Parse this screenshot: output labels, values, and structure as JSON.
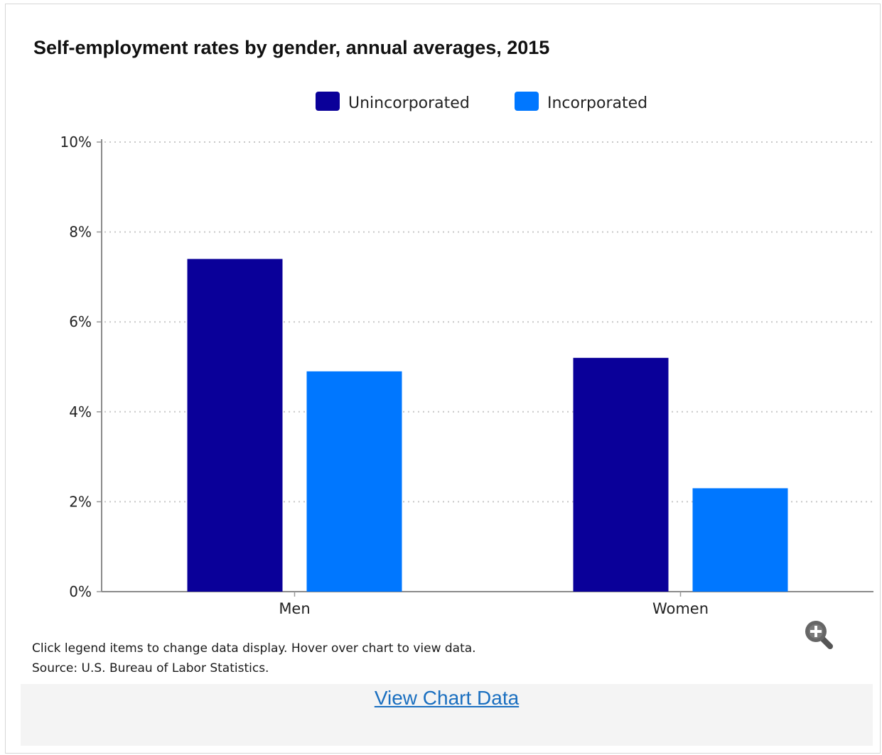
{
  "chart_data": {
    "type": "bar",
    "title": "Self-employment rates by gender, annual averages, 2015",
    "categories": [
      "Men",
      "Women"
    ],
    "series": [
      {
        "name": "Unincorporated",
        "values": [
          7.4,
          5.2
        ],
        "color": "#0a0099"
      },
      {
        "name": "Incorporated",
        "values": [
          4.9,
          2.3
        ],
        "color": "#0077ff"
      }
    ],
    "ylim": [
      0,
      10
    ],
    "yticks": [
      0,
      2,
      4,
      6,
      8,
      10
    ],
    "y_tick_suffix": "%",
    "xlabel": "",
    "ylabel": "",
    "grid": true,
    "legend_position": "top"
  },
  "notes": {
    "interaction": "Click legend items to change data display. Hover over chart to view data.",
    "source": "Source: U.S. Bureau of Labor Statistics."
  },
  "controls": {
    "zoom_icon": "zoom-in-icon",
    "view_data_label": "View Chart Data"
  }
}
